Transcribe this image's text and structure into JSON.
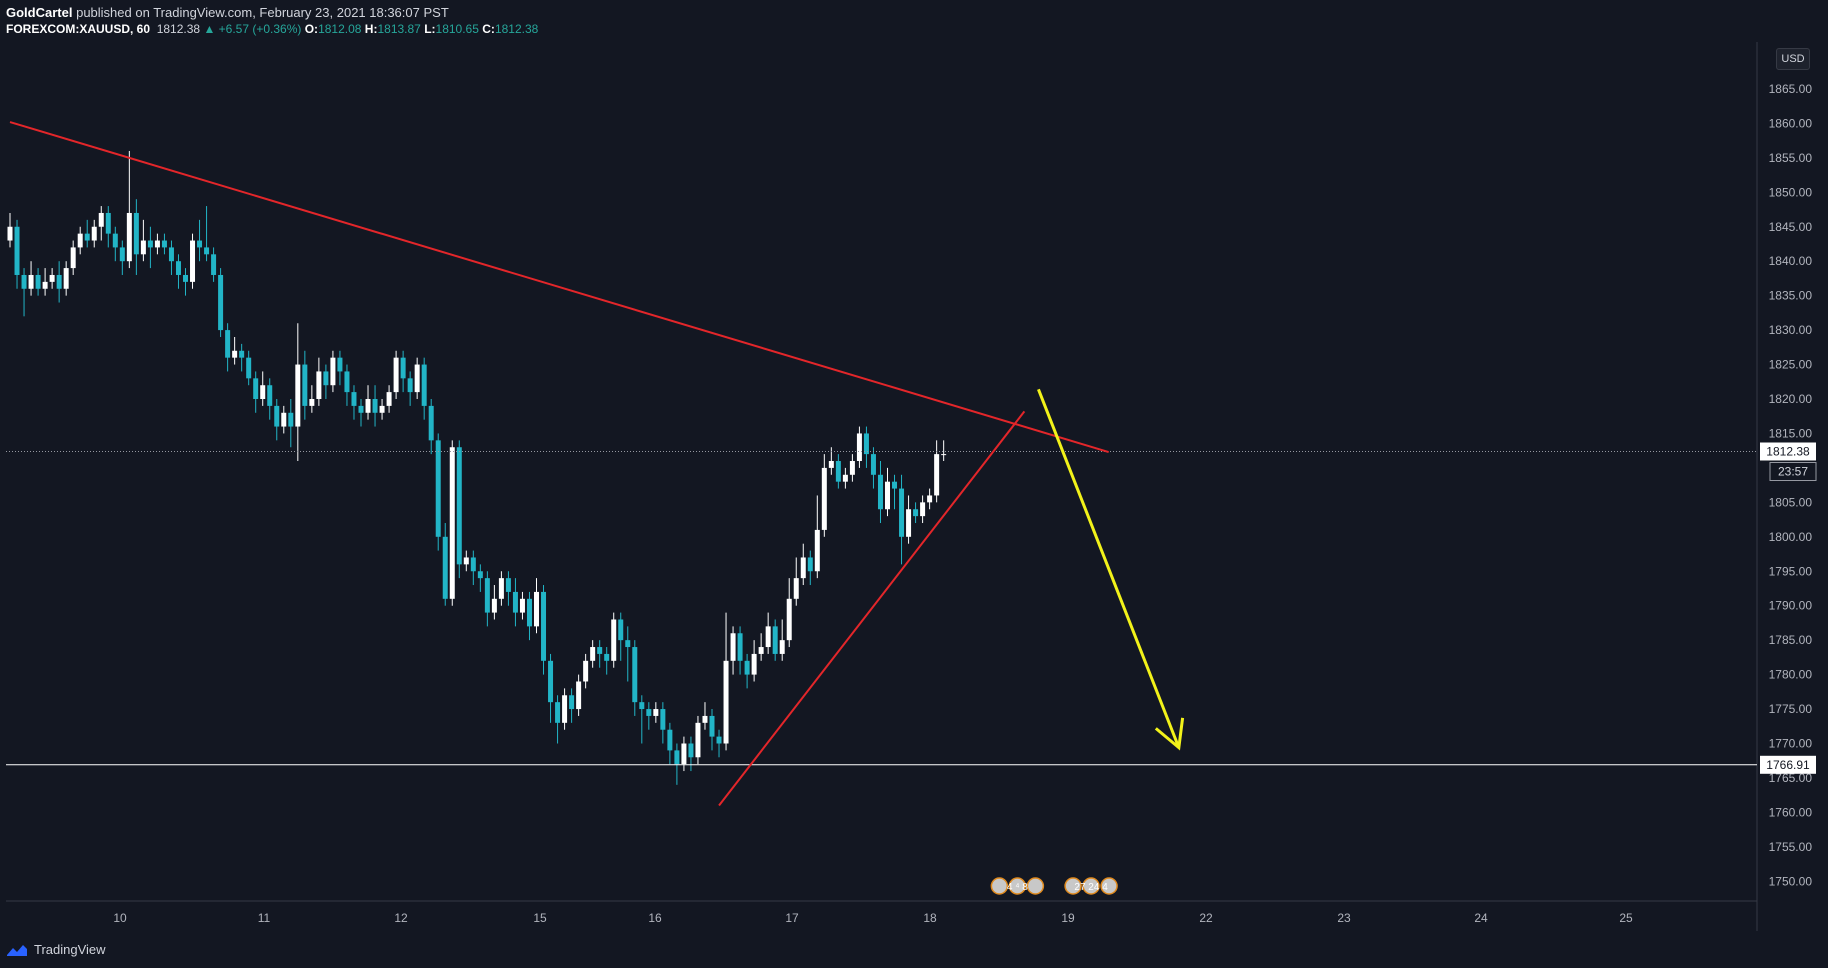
{
  "header": {
    "author": "GoldCartel",
    "published": "published on TradingView.com, February 23, 2021 18:36:07 PST",
    "symbol": "FOREXCOM:XAUUSD, 60",
    "last": "1812.38",
    "change": "▲ +6.57 (+0.36%)",
    "o_label": "O:",
    "o_value": "1812.08",
    "h_label": "H:",
    "h_value": "1813.87",
    "l_label": "L:",
    "l_value": "1810.65",
    "c_label": "C:",
    "c_value": "1812.38"
  },
  "footer": {
    "brand": "TradingView"
  },
  "currency": "USD",
  "colors": {
    "background": "#131722",
    "up": "#ffffff",
    "down": "#22b5c7",
    "trendline": "#e3262a",
    "arrow": "#f2f21a",
    "support": "#ffffff",
    "grid": "#2a2e39"
  },
  "chart_data": {
    "type": "candlestick",
    "ylim": [
      1745,
      1870
    ],
    "y_ticks": [
      "1865.00",
      "1860.00",
      "1855.00",
      "1850.00",
      "1845.00",
      "1840.00",
      "1835.00",
      "1830.00",
      "1825.00",
      "1820.00",
      "1815.00",
      "1805.00",
      "1800.00",
      "1795.00",
      "1790.00",
      "1785.00",
      "1780.00",
      "1775.00",
      "1770.00",
      "1765.00",
      "1760.00",
      "1755.00",
      "1750.00"
    ],
    "x_labels": [
      "10",
      "11",
      "12",
      "15",
      "16",
      "17",
      "18",
      "19",
      "22",
      "23",
      "24",
      "25"
    ],
    "price_label": "1812.38",
    "countdown": "23:57",
    "support_label": "1766.91",
    "support_level": 1766.91,
    "current_price": 1812.38,
    "event_badges": [
      {
        "x_slot": 143.5,
        "text": "4 ⁴ 8"
      },
      {
        "x_slot": 154,
        "text": "27 24 4"
      }
    ],
    "candles": [
      [
        1843,
        1845,
        1842,
        1847
      ],
      [
        1845,
        1838,
        1836,
        1846
      ],
      [
        1838,
        1836,
        1832,
        1839
      ],
      [
        1836,
        1838,
        1835,
        1840
      ],
      [
        1838,
        1836,
        1835,
        1839
      ],
      [
        1836,
        1837,
        1835,
        1839
      ],
      [
        1837,
        1838,
        1836,
        1839
      ],
      [
        1838,
        1836,
        1834,
        1840
      ],
      [
        1836,
        1839,
        1835,
        1840
      ],
      [
        1839,
        1842,
        1838,
        1843
      ],
      [
        1842,
        1844,
        1841,
        1845
      ],
      [
        1844,
        1843,
        1842,
        1846
      ],
      [
        1843,
        1845,
        1842,
        1846
      ],
      [
        1845,
        1847,
        1843,
        1848
      ],
      [
        1847,
        1844,
        1842,
        1848
      ],
      [
        1844,
        1842,
        1840,
        1845
      ],
      [
        1842,
        1840,
        1838,
        1843
      ],
      [
        1840,
        1847,
        1839,
        1856
      ],
      [
        1847,
        1841,
        1838,
        1849
      ],
      [
        1841,
        1843,
        1840,
        1846
      ],
      [
        1843,
        1842,
        1839,
        1845
      ],
      [
        1842,
        1843,
        1841,
        1844
      ],
      [
        1843,
        1842,
        1841,
        1844
      ],
      [
        1842,
        1840,
        1838,
        1843
      ],
      [
        1840,
        1838,
        1836,
        1841
      ],
      [
        1838,
        1837,
        1835,
        1839
      ],
      [
        1837,
        1843,
        1836,
        1844
      ],
      [
        1843,
        1842,
        1840,
        1846
      ],
      [
        1842,
        1841,
        1840,
        1848
      ],
      [
        1841,
        1838,
        1837,
        1842
      ],
      [
        1838,
        1830,
        1829,
        1839
      ],
      [
        1830,
        1826,
        1824,
        1831
      ],
      [
        1826,
        1827,
        1825,
        1829
      ],
      [
        1827,
        1826,
        1824,
        1828
      ],
      [
        1826,
        1823,
        1822,
        1827
      ],
      [
        1823,
        1820,
        1818,
        1824
      ],
      [
        1820,
        1822,
        1819,
        1824
      ],
      [
        1822,
        1819,
        1817,
        1823
      ],
      [
        1819,
        1816,
        1814,
        1820
      ],
      [
        1816,
        1818,
        1815,
        1819
      ],
      [
        1818,
        1816,
        1813,
        1820
      ],
      [
        1816,
        1825,
        1811,
        1831
      ],
      [
        1825,
        1819,
        1817,
        1827
      ],
      [
        1819,
        1820,
        1818,
        1822
      ],
      [
        1820,
        1824,
        1819,
        1826
      ],
      [
        1824,
        1822,
        1820,
        1825
      ],
      [
        1822,
        1826,
        1821,
        1827
      ],
      [
        1826,
        1824,
        1822,
        1827
      ],
      [
        1824,
        1821,
        1819,
        1825
      ],
      [
        1821,
        1819,
        1817,
        1822
      ],
      [
        1819,
        1818,
        1816,
        1820
      ],
      [
        1818,
        1820,
        1817,
        1822
      ],
      [
        1820,
        1818,
        1816,
        1822
      ],
      [
        1818,
        1819,
        1817,
        1820
      ],
      [
        1819,
        1821,
        1818,
        1822
      ],
      [
        1821,
        1826,
        1820,
        1827
      ],
      [
        1826,
        1823,
        1821,
        1827
      ],
      [
        1823,
        1821,
        1819,
        1824
      ],
      [
        1821,
        1825,
        1820,
        1826
      ],
      [
        1825,
        1819,
        1817,
        1826
      ],
      [
        1819,
        1814,
        1812,
        1820
      ],
      [
        1814,
        1800,
        1798,
        1815
      ],
      [
        1800,
        1791,
        1790,
        1802
      ],
      [
        1791,
        1813,
        1790,
        1814
      ],
      [
        1813,
        1796,
        1794,
        1814
      ],
      [
        1796,
        1797,
        1795,
        1798
      ],
      [
        1797,
        1795,
        1793,
        1798
      ],
      [
        1795,
        1794,
        1792,
        1796
      ],
      [
        1794,
        1789,
        1787,
        1795
      ],
      [
        1789,
        1791,
        1788,
        1793
      ],
      [
        1791,
        1794,
        1790,
        1795
      ],
      [
        1794,
        1792,
        1790,
        1795
      ],
      [
        1792,
        1789,
        1787,
        1794
      ],
      [
        1789,
        1791,
        1788,
        1792
      ],
      [
        1791,
        1787,
        1785,
        1792
      ],
      [
        1787,
        1792,
        1786,
        1794
      ],
      [
        1792,
        1782,
        1780,
        1793
      ],
      [
        1782,
        1776,
        1773,
        1783
      ],
      [
        1776,
        1773,
        1770,
        1777
      ],
      [
        1773,
        1777,
        1772,
        1778
      ],
      [
        1777,
        1775,
        1773,
        1778
      ],
      [
        1775,
        1779,
        1774,
        1780
      ],
      [
        1779,
        1782,
        1778,
        1783
      ],
      [
        1782,
        1784,
        1781,
        1785
      ],
      [
        1784,
        1783,
        1781,
        1785
      ],
      [
        1783,
        1782,
        1780,
        1784
      ],
      [
        1782,
        1788,
        1781,
        1789
      ],
      [
        1788,
        1785,
        1782,
        1789
      ],
      [
        1785,
        1784,
        1779,
        1787
      ],
      [
        1784,
        1776,
        1774,
        1785
      ],
      [
        1776,
        1775,
        1770,
        1777
      ],
      [
        1775,
        1774,
        1772,
        1776
      ],
      [
        1774,
        1775,
        1773,
        1776
      ],
      [
        1775,
        1772,
        1770,
        1776
      ],
      [
        1772,
        1769,
        1767,
        1773
      ],
      [
        1769,
        1767,
        1764,
        1770
      ],
      [
        1767,
        1770,
        1766,
        1771
      ],
      [
        1770,
        1768,
        1766,
        1771
      ],
      [
        1768,
        1773,
        1767,
        1774
      ],
      [
        1773,
        1774,
        1772,
        1776
      ],
      [
        1774,
        1771,
        1769,
        1775
      ],
      [
        1771,
        1770,
        1768,
        1772
      ],
      [
        1770,
        1782,
        1769,
        1789
      ],
      [
        1782,
        1786,
        1780,
        1787
      ],
      [
        1786,
        1782,
        1780,
        1787
      ],
      [
        1782,
        1780,
        1778,
        1783
      ],
      [
        1780,
        1783,
        1779,
        1785
      ],
      [
        1783,
        1784,
        1782,
        1786
      ],
      [
        1784,
        1787,
        1783,
        1789
      ],
      [
        1787,
        1783,
        1782,
        1788
      ],
      [
        1783,
        1785,
        1782,
        1788
      ],
      [
        1785,
        1791,
        1784,
        1794
      ],
      [
        1791,
        1794,
        1790,
        1797
      ],
      [
        1794,
        1797,
        1793,
        1799
      ],
      [
        1797,
        1795,
        1793,
        1798
      ],
      [
        1795,
        1801,
        1794,
        1806
      ],
      [
        1801,
        1810,
        1800,
        1812
      ],
      [
        1810,
        1811,
        1809,
        1813
      ],
      [
        1811,
        1808,
        1807,
        1812
      ],
      [
        1808,
        1809,
        1807,
        1810
      ],
      [
        1809,
        1811,
        1808,
        1812
      ],
      [
        1811,
        1815,
        1810,
        1816
      ],
      [
        1815,
        1812,
        1810,
        1816
      ],
      [
        1812,
        1809,
        1807,
        1813
      ],
      [
        1809,
        1804,
        1802,
        1811
      ],
      [
        1804,
        1808,
        1803,
        1810
      ],
      [
        1808,
        1807,
        1804,
        1809
      ],
      [
        1807,
        1800,
        1796,
        1809
      ],
      [
        1800,
        1804,
        1799,
        1806
      ],
      [
        1804,
        1803,
        1802,
        1805
      ],
      [
        1803,
        1805,
        1802,
        1806
      ],
      [
        1805,
        1806,
        1804,
        1807
      ],
      [
        1806,
        1812,
        1805,
        1814
      ],
      [
        1812,
        1812,
        1811,
        1814
      ]
    ],
    "trendlines": [
      {
        "kind": "resistance",
        "from": [
          0,
          1860.2
        ],
        "to": [
          156.5,
          1812.3
        ]
      },
      {
        "kind": "support",
        "from": [
          101,
          1761.0
        ],
        "to": [
          144.5,
          1818.2
        ]
      }
    ],
    "projection_arrow": {
      "from": [
        146.5,
        1821.4
      ],
      "to": [
        166.5,
        1769.4
      ]
    }
  }
}
